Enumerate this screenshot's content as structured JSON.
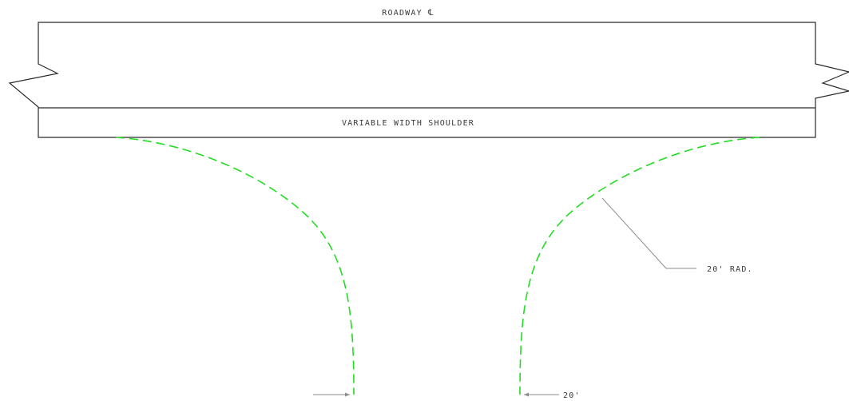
{
  "labels": {
    "roadway": "ROADWAY ℄",
    "shoulder": "VARIABLE WIDTH SHOULDER",
    "radius": "20' RAD.",
    "width": "20'"
  },
  "colors": {
    "curb_line": "#22dd22",
    "outline": "#2a2a2a",
    "leader": "#8c8c8c",
    "text": "#3a3a3a"
  }
}
